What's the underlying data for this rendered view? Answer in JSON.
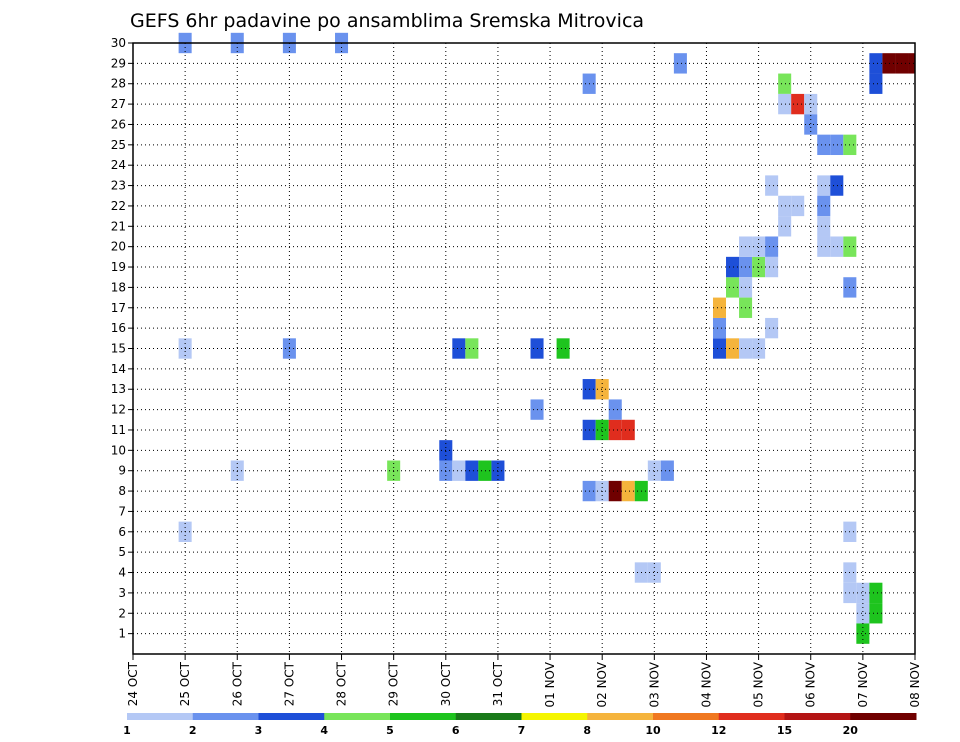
{
  "chart_data": {
    "type": "heatmap",
    "title": "GEFS 6hr padavine po ansamblima Sremska Mitrovica",
    "x_tick_labels": [
      "24 OCT",
      "25 OCT",
      "26 OCT",
      "27 OCT",
      "28 OCT",
      "29 OCT",
      "30 OCT",
      "31 OCT",
      "01 NOV",
      "02 NOV",
      "03 NOV",
      "04 NOV",
      "05 NOV",
      "06 NOV",
      "07 NOV",
      "08 NOV"
    ],
    "y_tick_labels": [
      1,
      2,
      3,
      4,
      5,
      6,
      7,
      8,
      9,
      10,
      11,
      12,
      13,
      14,
      15,
      16,
      17,
      18,
      19,
      20,
      21,
      22,
      23,
      24,
      25,
      26,
      27,
      28,
      29,
      30
    ],
    "ylim": [
      0,
      30
    ],
    "xlim": [
      0,
      15
    ],
    "x_step": 0.25,
    "grid": true,
    "legend": {
      "placement": "bottom",
      "labels": [
        "1",
        "2",
        "3",
        "4",
        "5",
        "6",
        "7",
        "8",
        "10",
        "12",
        "15",
        "20"
      ],
      "colors": [
        "#b4c8f5",
        "#6a92ee",
        "#1e4fd8",
        "#78e55a",
        "#1ec41e",
        "#1a7a1a",
        "#f5f500",
        "#f5b43c",
        "#f07820",
        "#e02d1e",
        "#b41414",
        "#700000"
      ]
    },
    "cells": [
      [
        15,
        1,
        0
      ],
      [
        30,
        1,
        1
      ],
      [
        30,
        2,
        1
      ],
      [
        30,
        3,
        1
      ],
      [
        30,
        4,
        1
      ],
      [
        28,
        8.75,
        1
      ],
      [
        6,
        1,
        0
      ],
      [
        9,
        2,
        0
      ],
      [
        15,
        3,
        1
      ],
      [
        8,
        8.75,
        1
      ],
      [
        8,
        9,
        0
      ],
      [
        8,
        9.25,
        11
      ],
      [
        8,
        9.5,
        7
      ],
      [
        8,
        9.75,
        4
      ],
      [
        11,
        8.75,
        2
      ],
      [
        11,
        9,
        4
      ],
      [
        11,
        9.25,
        9
      ],
      [
        11,
        9.5,
        9
      ],
      [
        9,
        5,
        3
      ],
      [
        9,
        6,
        1
      ],
      [
        9,
        6.25,
        0
      ],
      [
        9,
        6.5,
        2
      ],
      [
        9,
        6.75,
        4
      ],
      [
        9,
        7,
        2
      ],
      [
        10,
        6,
        2
      ],
      [
        15,
        6.25,
        2
      ],
      [
        15,
        6.5,
        3
      ],
      [
        12,
        7.75,
        1
      ],
      [
        15,
        7.75,
        2
      ],
      [
        15,
        8.25,
        4
      ],
      [
        13,
        8.75,
        2
      ],
      [
        13,
        9,
        7
      ],
      [
        12,
        9.25,
        1
      ],
      [
        4,
        9.75,
        0
      ],
      [
        4,
        10,
        0
      ],
      [
        9,
        10,
        0
      ],
      [
        9,
        10.25,
        1
      ],
      [
        29,
        10.5,
        1
      ],
      [
        15,
        11.25,
        2
      ],
      [
        15,
        11.5,
        7
      ],
      [
        15,
        11.75,
        0
      ],
      [
        15,
        12,
        0
      ],
      [
        16,
        11.25,
        1
      ],
      [
        17,
        11.25,
        7
      ],
      [
        18,
        11.5,
        3
      ],
      [
        19,
        11.5,
        2
      ],
      [
        19,
        11.75,
        1
      ],
      [
        19,
        12,
        3
      ],
      [
        19,
        12.25,
        0
      ],
      [
        18,
        11.75,
        0
      ],
      [
        17,
        11.75,
        3
      ],
      [
        16,
        12.25,
        0
      ],
      [
        20,
        11.75,
        0
      ],
      [
        20,
        12,
        0
      ],
      [
        20,
        12.25,
        1
      ],
      [
        23,
        12.25,
        0
      ],
      [
        21,
        12.5,
        0
      ],
      [
        22,
        12.5,
        0
      ],
      [
        22,
        12.75,
        0
      ],
      [
        28,
        12.5,
        3
      ],
      [
        27,
        12.5,
        0
      ],
      [
        27,
        12.75,
        9
      ],
      [
        27,
        13,
        0
      ],
      [
        26,
        13,
        1
      ],
      [
        25,
        13.25,
        1
      ],
      [
        25,
        13.5,
        1
      ],
      [
        25,
        13.75,
        3
      ],
      [
        23,
        13.25,
        0
      ],
      [
        23,
        13.5,
        2
      ],
      [
        22,
        13.25,
        1
      ],
      [
        21,
        13.25,
        0
      ],
      [
        20,
        13.25,
        0
      ],
      [
        20,
        13.5,
        0
      ],
      [
        20,
        13.75,
        3
      ],
      [
        18,
        13.75,
        1
      ],
      [
        6,
        13.75,
        0
      ],
      [
        4,
        13.75,
        0
      ],
      [
        3,
        13.75,
        0
      ],
      [
        3,
        14,
        0
      ],
      [
        3,
        14.25,
        4
      ],
      [
        2,
        14,
        0
      ],
      [
        2,
        14.25,
        4
      ],
      [
        1,
        14,
        4
      ],
      [
        28,
        14.25,
        2
      ],
      [
        29,
        14.25,
        2
      ],
      [
        29,
        14.5,
        11
      ],
      [
        29,
        14.75,
        11
      ],
      [
        29,
        15,
        11
      ]
    ]
  }
}
